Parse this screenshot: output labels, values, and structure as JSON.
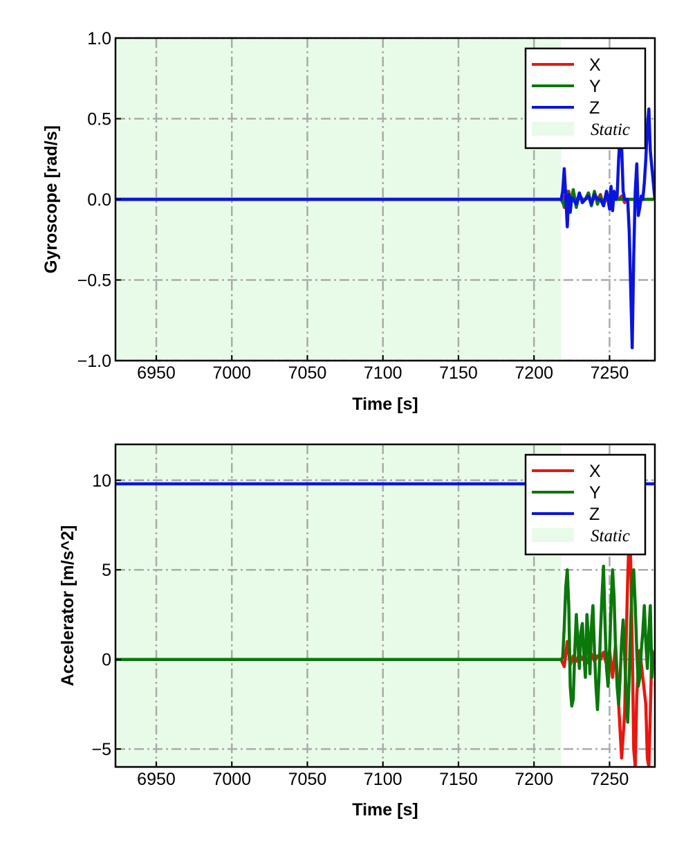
{
  "chart_data": [
    {
      "type": "line",
      "xlabel": "Time [s]",
      "ylabel": "Gyroscope [rad/s]",
      "xlim": [
        6923,
        7280
      ],
      "ylim": [
        -1.0,
        1.0
      ],
      "xticks": [
        6950,
        7000,
        7050,
        7100,
        7150,
        7200,
        7250
      ],
      "xtick_labels": [
        "6950",
        "7000",
        "7050",
        "7100",
        "7150",
        "7200",
        "7250"
      ],
      "yticks": [
        -1.0,
        -0.5,
        0.0,
        0.5,
        1.0
      ],
      "ytick_labels": [
        "−1.0",
        "−0.5",
        "0.0",
        "0.5",
        "1.0"
      ],
      "grid": true,
      "legend_position": "top-right",
      "static_region": {
        "label": "Static",
        "x_start": 6923,
        "x_end": 7218,
        "color": "#e8fbe8"
      },
      "series": [
        {
          "name": "X",
          "color": "#e8170f",
          "x": [
            6923,
            7218,
            7219,
            7220,
            7221,
            7222,
            7223,
            7224,
            7226,
            7228,
            7230,
            7232,
            7234,
            7236,
            7238,
            7240,
            7242,
            7244,
            7246,
            7248,
            7250,
            7252,
            7254,
            7256,
            7258,
            7260,
            7262,
            7264,
            7266,
            7268,
            7270,
            7272,
            7274,
            7276,
            7278,
            7280
          ],
          "y": [
            0.0,
            0.0,
            0.02,
            -0.05,
            0.04,
            -0.03,
            0.05,
            -0.02,
            0.03,
            -0.04,
            0.02,
            0.0,
            0.0,
            0.04,
            -0.03,
            0.02,
            0.0,
            0.03,
            -0.04,
            0.02,
            -0.03,
            0.04,
            0.0,
            0.0,
            0.02,
            -0.02,
            0.0,
            0.0,
            0.0,
            0.0,
            0.0,
            0.0,
            0.0,
            0.0,
            0.0,
            0.0
          ]
        },
        {
          "name": "Y",
          "color": "#0a780a",
          "x": [
            6923,
            7218,
            7220,
            7222,
            7224,
            7226,
            7228,
            7230,
            7232,
            7234,
            7236,
            7238,
            7240,
            7242,
            7244,
            7246,
            7248,
            7250,
            7252,
            7254,
            7256,
            7258,
            7260,
            7262,
            7264,
            7266,
            7268,
            7270,
            7272,
            7274,
            7276,
            7278,
            7280
          ],
          "y": [
            0.0,
            0.0,
            -0.04,
            0.05,
            -0.03,
            0.06,
            -0.05,
            0.03,
            0.0,
            0.0,
            0.04,
            -0.04,
            0.05,
            -0.03,
            0.02,
            -0.04,
            0.05,
            -0.02,
            0.03,
            0.0,
            0.0,
            0.0,
            0.0,
            0.0,
            0.0,
            0.0,
            0.0,
            0.0,
            0.0,
            0.0,
            0.0,
            0.0,
            0.0
          ]
        },
        {
          "name": "Z",
          "color": "#0a14e0",
          "x": [
            6923,
            7218,
            7219,
            7220,
            7221,
            7222,
            7223,
            7224,
            7225,
            7226,
            7228,
            7230,
            7232,
            7234,
            7236,
            7238,
            7240,
            7242,
            7244,
            7246,
            7248,
            7250,
            7251,
            7252,
            7253,
            7254,
            7255,
            7256,
            7257,
            7258,
            7259,
            7260,
            7261,
            7262,
            7263,
            7264,
            7265,
            7266,
            7267,
            7268,
            7269,
            7270,
            7271,
            7272,
            7273,
            7274,
            7275,
            7276,
            7277,
            7278,
            7280
          ],
          "y": [
            0.0,
            0.0,
            0.05,
            0.19,
            0.02,
            -0.17,
            0.03,
            -0.08,
            0.01,
            0.0,
            -0.03,
            0.04,
            -0.02,
            0.0,
            0.02,
            -0.03,
            0.03,
            0.0,
            0.0,
            -0.04,
            0.05,
            -0.06,
            0.08,
            -0.07,
            0.05,
            0.0,
            0.02,
            0.25,
            0.4,
            0.33,
            0.05,
            0.0,
            0.0,
            0.0,
            -0.2,
            -0.55,
            -0.92,
            -0.35,
            0.05,
            0.22,
            -0.1,
            -0.05,
            0.02,
            0.0,
            0.1,
            0.25,
            0.45,
            0.56,
            0.3,
            0.2,
            0.0
          ]
        }
      ]
    },
    {
      "type": "line",
      "xlabel": "Time [s]",
      "ylabel": "Accelerator [m/s^2]",
      "xlim": [
        6923,
        7280
      ],
      "ylim": [
        -6.0,
        12.0
      ],
      "xticks": [
        6950,
        7000,
        7050,
        7100,
        7150,
        7200,
        7250
      ],
      "xtick_labels": [
        "6950",
        "7000",
        "7050",
        "7100",
        "7150",
        "7200",
        "7250"
      ],
      "yticks": [
        -5,
        0,
        5,
        10
      ],
      "ytick_labels": [
        "−5",
        "0",
        "5",
        "10"
      ],
      "grid": true,
      "legend_position": "top-right",
      "static_region": {
        "label": "Static",
        "x_start": 6923,
        "x_end": 7218,
        "color": "#e8fbe8"
      },
      "series": [
        {
          "name": "X",
          "color": "#e8170f",
          "x": [
            6923,
            7218,
            7220,
            7222,
            7224,
            7226,
            7228,
            7230,
            7232,
            7234,
            7236,
            7238,
            7240,
            7242,
            7244,
            7246,
            7248,
            7250,
            7252,
            7254,
            7256,
            7258,
            7260,
            7261,
            7262,
            7263,
            7264,
            7265,
            7266,
            7267,
            7268,
            7270,
            7272,
            7274,
            7275,
            7276,
            7277,
            7278,
            7280
          ],
          "y": [
            0.0,
            0.0,
            -0.4,
            1.0,
            -0.3,
            0.2,
            -0.1,
            0.3,
            0.0,
            0.2,
            -0.2,
            0.3,
            -0.1,
            0.2,
            0.0,
            0.4,
            -0.3,
            0.5,
            -1.0,
            0.8,
            -2.5,
            -5.5,
            -3.0,
            1.0,
            4.5,
            7.0,
            5.5,
            1.0,
            -5.0,
            -6.0,
            -2.0,
            0.5,
            -1.0,
            -2.5,
            -5.5,
            -6.0,
            -3.0,
            0.5,
            0.0
          ]
        },
        {
          "name": "Y",
          "color": "#0a780a",
          "x": [
            6923,
            7218,
            7219,
            7220,
            7221,
            7222,
            7223,
            7224,
            7225,
            7226,
            7227,
            7228,
            7229,
            7230,
            7231,
            7232,
            7233,
            7234,
            7235,
            7236,
            7237,
            7238,
            7239,
            7240,
            7241,
            7242,
            7243,
            7244,
            7245,
            7246,
            7247,
            7248,
            7249,
            7250,
            7251,
            7252,
            7253,
            7254,
            7255,
            7256,
            7257,
            7258,
            7259,
            7260,
            7261,
            7262,
            7263,
            7264,
            7265,
            7266,
            7267,
            7268,
            7269,
            7270,
            7271,
            7272,
            7273,
            7274,
            7275,
            7276,
            7277,
            7278,
            7279,
            7280
          ],
          "y": [
            0.0,
            0.0,
            0.1,
            1.8,
            4.0,
            5.0,
            3.0,
            -1.5,
            -2.6,
            -2.2,
            0.5,
            2.5,
            1.0,
            -0.5,
            1.5,
            2.0,
            0.3,
            -1.0,
            2.5,
            1.2,
            -0.8,
            1.8,
            3.0,
            0.5,
            -1.5,
            -2.8,
            -1.0,
            1.5,
            3.5,
            5.2,
            2.0,
            -0.5,
            -1.5,
            0.5,
            3.0,
            5.0,
            3.5,
            0.5,
            -1.5,
            -2.5,
            -1.0,
            1.0,
            2.2,
            0.2,
            -2.0,
            -3.5,
            -1.0,
            2.0,
            4.5,
            5.0,
            3.0,
            0.5,
            -1.5,
            -1.0,
            0.5,
            1.5,
            3.0,
            1.0,
            -0.5,
            1.5,
            3.0,
            -1.0,
            0.2,
            0.0
          ]
        },
        {
          "name": "Z",
          "color": "#0a14e0",
          "x": [
            6923,
            7218,
            7219,
            7280
          ],
          "y": [
            9.8,
            9.8,
            9.8,
            9.8
          ]
        }
      ]
    }
  ]
}
